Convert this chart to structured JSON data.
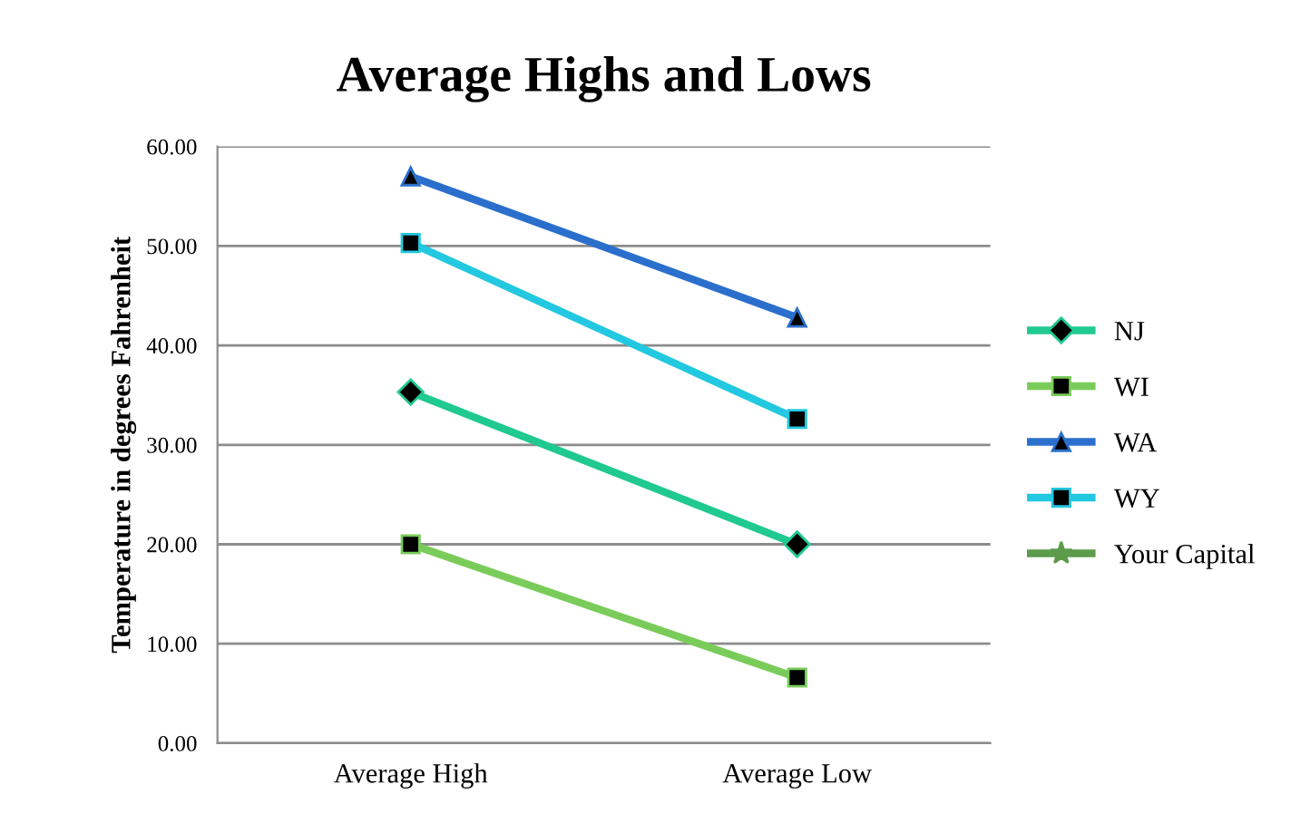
{
  "chart_data": {
    "type": "line",
    "title": "Average Highs and Lows",
    "ylabel": "Temperature in degrees Fahrenheit",
    "categories": [
      "Average High",
      "Average Low"
    ],
    "series": [
      {
        "name": "NJ",
        "color": "#1fc98f",
        "marker": "diamond",
        "values": [
          35.3,
          20.0
        ]
      },
      {
        "name": "WI",
        "color": "#7acc5a",
        "marker": "square",
        "values": [
          20.0,
          6.6
        ]
      },
      {
        "name": "WA",
        "color": "#2b6fcc",
        "marker": "triangle",
        "values": [
          57.0,
          42.8
        ]
      },
      {
        "name": "WY",
        "color": "#22c8e0",
        "marker": "square",
        "values": [
          50.3,
          32.6
        ]
      },
      {
        "name": "Your Capital",
        "color": "#5b9b4b",
        "marker": "star",
        "values": [
          null,
          null
        ]
      }
    ],
    "ylim": [
      0,
      60
    ],
    "yticks": [
      {
        "value": 0,
        "label": "0.00"
      },
      {
        "value": 10,
        "label": "10.00"
      },
      {
        "value": 20,
        "label": "20.00"
      },
      {
        "value": 30,
        "label": "30.00"
      },
      {
        "value": 40,
        "label": "40.00"
      },
      {
        "value": 50,
        "label": "50.00"
      },
      {
        "value": 60,
        "label": "60.00"
      }
    ],
    "grid": "y",
    "legend": "right",
    "line_style": "solid"
  }
}
